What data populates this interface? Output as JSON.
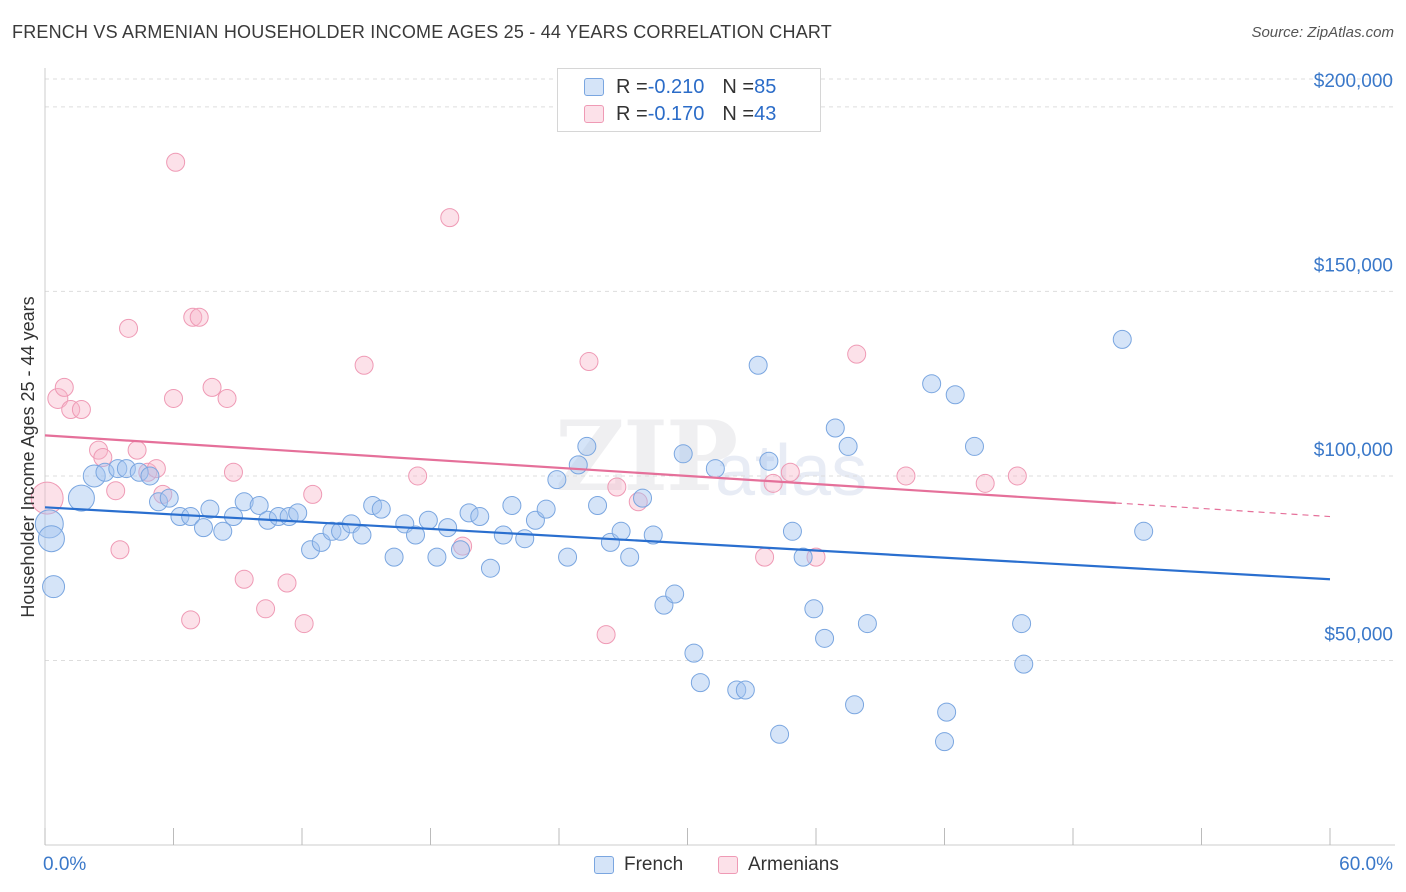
{
  "header": {
    "title": "FRENCH VS ARMENIAN HOUSEHOLDER INCOME AGES 25 - 44 YEARS CORRELATION CHART",
    "source": "Source: ZipAtlas.com"
  },
  "watermark": {
    "part1": "ZIP",
    "part2": "atlas"
  },
  "legend": {
    "french": {
      "r_label": "R = ",
      "r_value": "-0.210",
      "n_label": "N = ",
      "n_value": "85"
    },
    "armenians": {
      "r_label": "R = ",
      "r_value": "-0.170",
      "n_label": "N = ",
      "n_value": "43"
    }
  },
  "bottom_legend": {
    "french": "French",
    "armenians": "Armenians"
  },
  "colors": {
    "french_fill": "rgba(161,196,240,0.45)",
    "french_stroke": "#7aa6e0",
    "french_line": "#2a6fcf",
    "armenian_fill": "rgba(248,180,200,0.40)",
    "armenian_stroke": "#ef9ab5",
    "armenian_line": "#e5709a",
    "tick_label": "#3a78c9",
    "grid": "#dddddd"
  },
  "chart_data": {
    "type": "scatter",
    "title": "FRENCH VS ARMENIAN HOUSEHOLDER INCOME AGES 25 - 44 YEARS CORRELATION CHART",
    "xlabel": "",
    "ylabel": "Householder Income Ages 25 - 44 years",
    "xlim": [
      0,
      60
    ],
    "ylim": [
      0,
      210000
    ],
    "x_tick_labels": [
      "0.0%",
      "60.0%"
    ],
    "y_ticks": [
      50000,
      100000,
      150000,
      200000
    ],
    "y_tick_labels": [
      "$50,000",
      "$100,000",
      "$150,000",
      "$200,000"
    ],
    "grid": true,
    "legend_position": "top-center",
    "series": [
      {
        "name": "French",
        "r": -0.21,
        "n": 85,
        "trend": {
          "x0": 0,
          "y0": 91500,
          "x1": 60,
          "y1": 72000
        },
        "points": [
          [
            0.2,
            87000,
            14
          ],
          [
            0.3,
            83000,
            13
          ],
          [
            0.4,
            70000,
            11
          ],
          [
            1.7,
            94000,
            13
          ],
          [
            2.3,
            100000,
            11
          ],
          [
            2.8,
            101000,
            9
          ],
          [
            3.4,
            102000,
            9
          ],
          [
            3.8,
            102000,
            9
          ],
          [
            4.4,
            101000,
            9
          ],
          [
            4.9,
            100000,
            9
          ],
          [
            5.3,
            93000,
            9
          ],
          [
            5.8,
            94000,
            9
          ],
          [
            6.3,
            89000,
            9
          ],
          [
            6.8,
            89000,
            9
          ],
          [
            7.4,
            86000,
            9
          ],
          [
            7.7,
            91000,
            9
          ],
          [
            8.3,
            85000,
            9
          ],
          [
            8.8,
            89000,
            9
          ],
          [
            9.3,
            93000,
            9
          ],
          [
            10.0,
            92000,
            9
          ],
          [
            10.4,
            88000,
            9
          ],
          [
            10.9,
            89000,
            9
          ],
          [
            11.4,
            89000,
            9
          ],
          [
            11.8,
            90000,
            9
          ],
          [
            12.4,
            80000,
            9
          ],
          [
            12.9,
            82000,
            9
          ],
          [
            13.4,
            85000,
            9
          ],
          [
            13.8,
            85000,
            9
          ],
          [
            14.3,
            87000,
            9
          ],
          [
            14.8,
            84000,
            9
          ],
          [
            15.3,
            92000,
            9
          ],
          [
            15.7,
            91000,
            9
          ],
          [
            16.3,
            78000,
            9
          ],
          [
            16.8,
            87000,
            9
          ],
          [
            17.3,
            84000,
            9
          ],
          [
            17.9,
            88000,
            9
          ],
          [
            18.3,
            78000,
            9
          ],
          [
            18.8,
            86000,
            9
          ],
          [
            19.4,
            80000,
            9
          ],
          [
            19.8,
            90000,
            9
          ],
          [
            20.3,
            89000,
            9
          ],
          [
            20.8,
            75000,
            9
          ],
          [
            21.4,
            84000,
            9
          ],
          [
            21.8,
            92000,
            9
          ],
          [
            22.4,
            83000,
            9
          ],
          [
            22.9,
            88000,
            9
          ],
          [
            23.4,
            91000,
            9
          ],
          [
            23.9,
            99000,
            9
          ],
          [
            24.4,
            78000,
            9
          ],
          [
            24.9,
            103000,
            9
          ],
          [
            25.3,
            108000,
            9
          ],
          [
            25.8,
            92000,
            9
          ],
          [
            26.4,
            82000,
            9
          ],
          [
            26.9,
            85000,
            9
          ],
          [
            27.3,
            78000,
            9
          ],
          [
            27.9,
            94000,
            9
          ],
          [
            28.4,
            84000,
            9
          ],
          [
            28.9,
            65000,
            9
          ],
          [
            29.4,
            68000,
            9
          ],
          [
            29.8,
            106000,
            9
          ],
          [
            30.3,
            52000,
            9
          ],
          [
            30.6,
            44000,
            9
          ],
          [
            31.3,
            102000,
            9
          ],
          [
            32.3,
            42000,
            9
          ],
          [
            32.7,
            42000,
            9
          ],
          [
            33.3,
            130000,
            9
          ],
          [
            33.8,
            104000,
            9
          ],
          [
            34.3,
            30000,
            9
          ],
          [
            34.9,
            85000,
            9
          ],
          [
            35.4,
            78000,
            9
          ],
          [
            35.9,
            64000,
            9
          ],
          [
            36.4,
            56000,
            9
          ],
          [
            36.9,
            113000,
            9
          ],
          [
            37.5,
            108000,
            9
          ],
          [
            37.8,
            38000,
            9
          ],
          [
            38.4,
            60000,
            9
          ],
          [
            42.0,
            28000,
            9
          ],
          [
            41.4,
            125000,
            9
          ],
          [
            42.5,
            122000,
            9
          ],
          [
            42.1,
            36000,
            9
          ],
          [
            43.4,
            108000,
            9
          ],
          [
            45.6,
            60000,
            9
          ],
          [
            45.7,
            49000,
            9
          ],
          [
            50.3,
            137000,
            9
          ],
          [
            51.3,
            85000,
            9
          ]
        ]
      },
      {
        "name": "Armenians",
        "r": -0.17,
        "n": 43,
        "trend": {
          "x0": 0,
          "y0": 111000,
          "x1": 60,
          "y1": 89000,
          "solid_until_x": 50.0
        },
        "points": [
          [
            0.1,
            94000,
            16
          ],
          [
            0.6,
            121000,
            10
          ],
          [
            0.9,
            124000,
            9
          ],
          [
            1.2,
            118000,
            9
          ],
          [
            1.7,
            118000,
            9
          ],
          [
            2.5,
            107000,
            9
          ],
          [
            2.7,
            105000,
            9
          ],
          [
            3.3,
            96000,
            9
          ],
          [
            3.5,
            80000,
            9
          ],
          [
            3.9,
            140000,
            9
          ],
          [
            4.3,
            107000,
            9
          ],
          [
            4.8,
            101000,
            9
          ],
          [
            5.2,
            102000,
            9
          ],
          [
            5.5,
            95000,
            9
          ],
          [
            6.0,
            121000,
            9
          ],
          [
            6.1,
            185000,
            9
          ],
          [
            6.8,
            61000,
            9
          ],
          [
            6.9,
            143000,
            9
          ],
          [
            7.2,
            143000,
            9
          ],
          [
            7.8,
            124000,
            9
          ],
          [
            8.5,
            121000,
            9
          ],
          [
            8.8,
            101000,
            9
          ],
          [
            9.3,
            72000,
            9
          ],
          [
            10.3,
            64000,
            9
          ],
          [
            11.3,
            71000,
            9
          ],
          [
            12.1,
            60000,
            9
          ],
          [
            12.5,
            95000,
            9
          ],
          [
            14.9,
            130000,
            9
          ],
          [
            17.4,
            100000,
            9
          ],
          [
            18.9,
            170000,
            9
          ],
          [
            19.5,
            81000,
            9
          ],
          [
            25.4,
            131000,
            9
          ],
          [
            26.2,
            57000,
            9
          ],
          [
            26.7,
            97000,
            9
          ],
          [
            27.7,
            93000,
            9
          ],
          [
            33.6,
            78000,
            9
          ],
          [
            34.0,
            98000,
            9
          ],
          [
            34.8,
            101000,
            9
          ],
          [
            36.0,
            78000,
            9
          ],
          [
            37.9,
            133000,
            9
          ],
          [
            40.2,
            100000,
            9
          ],
          [
            43.9,
            98000,
            9
          ],
          [
            45.4,
            100000,
            9
          ]
        ]
      }
    ]
  }
}
